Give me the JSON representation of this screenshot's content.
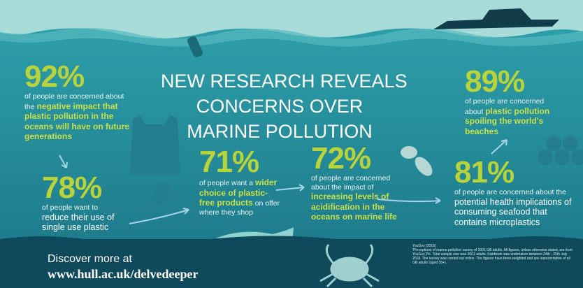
{
  "title": [
    "NEW RESEARCH REVEALS",
    "CONCERNS OVER",
    "MARINE POLLUTION"
  ],
  "stats": [
    {
      "value": "92%",
      "lead": "of people are concerned about the",
      "highlight": "negative impact that plastic pollution in the oceans will have on future generations"
    },
    {
      "value": "78%",
      "lead": "of people want to",
      "highlight": "reduce their use of single use plastic"
    },
    {
      "value": "71%",
      "lead": "of people want a",
      "highlight": "wider choice of plastic-free products",
      "tail": "on offer where they shop"
    },
    {
      "value": "72%",
      "lead": "of people are concerned about the impact of",
      "highlight": "increasing levels of acidification in the oceans on marine life"
    },
    {
      "value": "89%",
      "lead": "of people are concerned about",
      "highlight": "plastic pollution spoiling the world's beaches"
    },
    {
      "value": "81%",
      "lead": "of people are concerned about the",
      "highlight": "potential health implications of consuming seafood that contains microplastics"
    }
  ],
  "footer": {
    "discover": "Discover more at",
    "url": "www.hull.ac.uk/delvedeeper"
  },
  "source": {
    "title": "YouGov (2018)",
    "text": "'Perceptions of marine pollution' survey of 2001 GB adults. All figures, unless otherwise stated, are from YouGov Plc. Total sample size was 2001 adults. Fieldwork was undertaken between 24th - 25th July 2018. The survey was carried out online. The figures have been weighted and are representative of all GB adults (aged 18+)."
  }
}
